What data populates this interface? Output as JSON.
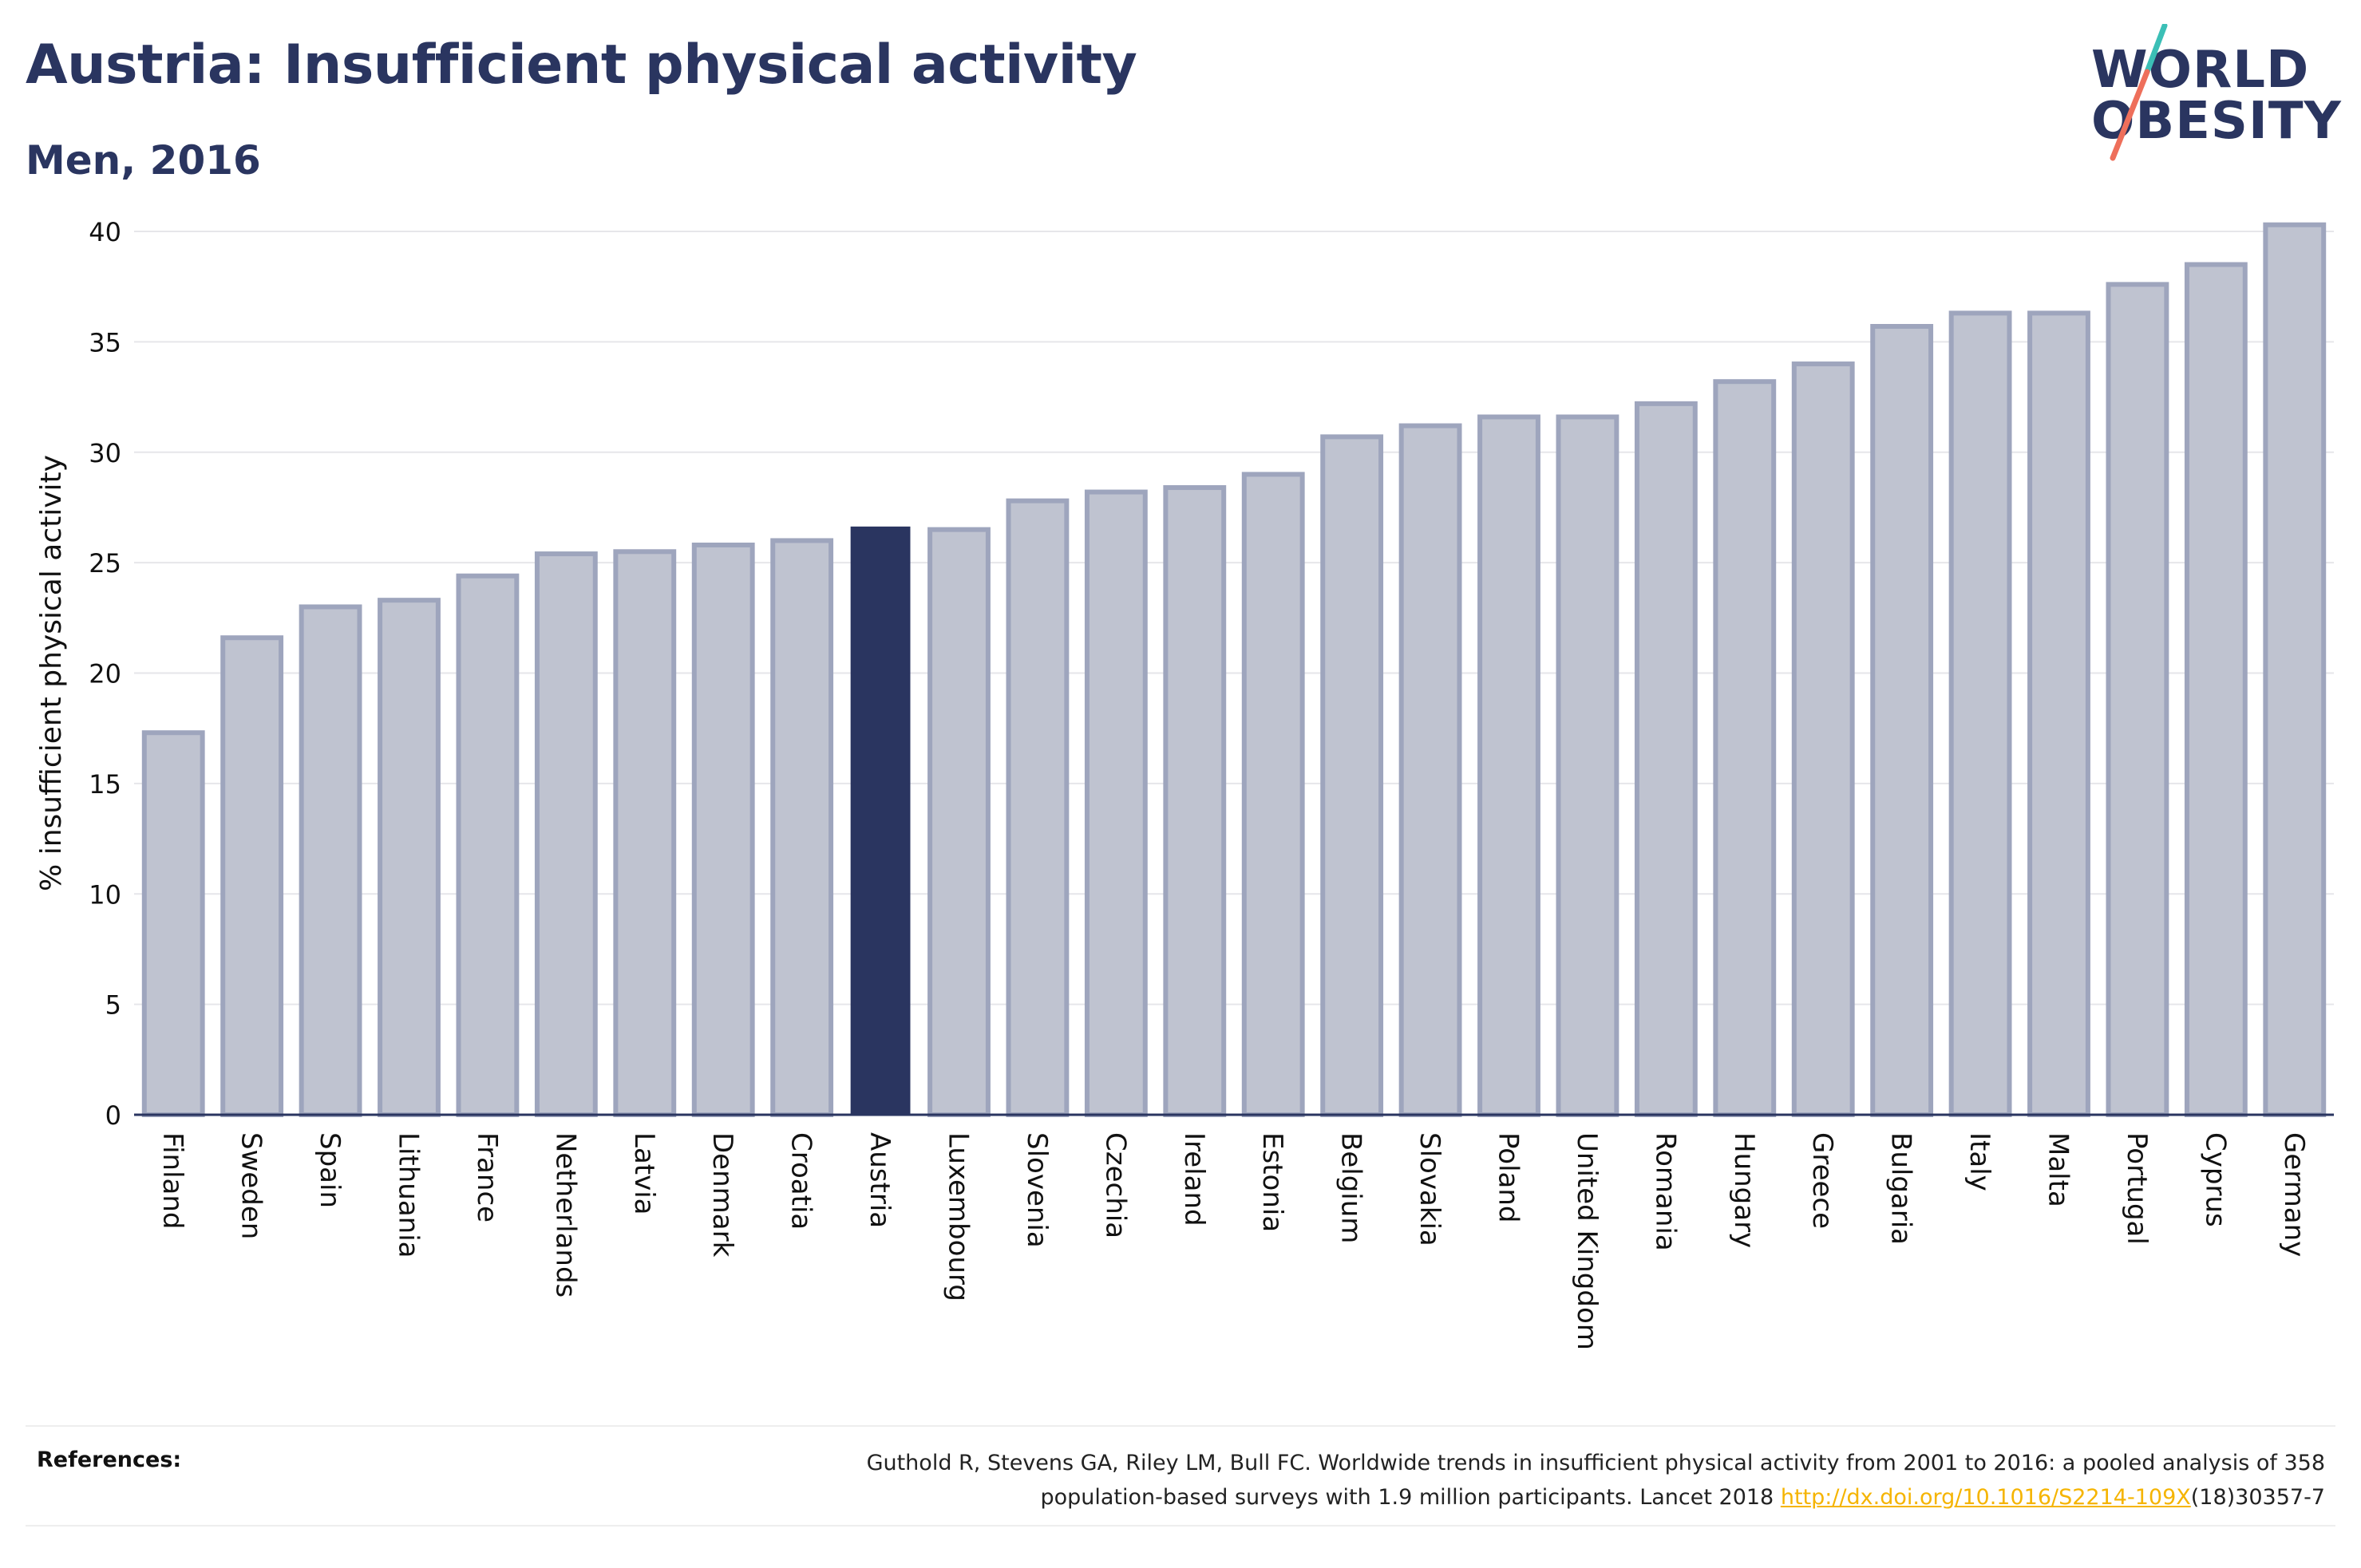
{
  "header": {
    "title": "Austria: Insufficient physical activity",
    "subtitle": "Men, 2016"
  },
  "logo": {
    "line1": "WORLD",
    "line2": "OBESITY",
    "colors": {
      "text": "#2a3560",
      "slash_top": "#3bbfb6",
      "slash_bottom": "#ee6f5b"
    }
  },
  "colors": {
    "bar_fill": "#bfc3d0",
    "bar_stroke": "#9ea5bd",
    "highlight_fill": "#2a3560",
    "grid": "#e6e6ea",
    "axis": "#2a3560"
  },
  "chart_data": {
    "type": "bar",
    "categories": [
      "Finland",
      "Sweden",
      "Spain",
      "Lithuania",
      "France",
      "Netherlands",
      "Latvia",
      "Denmark",
      "Croatia",
      "Austria",
      "Luxembourg",
      "Slovenia",
      "Czechia",
      "Ireland",
      "Estonia",
      "Belgium",
      "Slovakia",
      "Poland",
      "United Kingdom",
      "Romania",
      "Hungary",
      "Greece",
      "Bulgaria",
      "Italy",
      "Malta",
      "Portugal",
      "Cyprus",
      "Germany"
    ],
    "values": [
      17.3,
      21.6,
      23.0,
      23.3,
      24.4,
      25.4,
      25.5,
      25.8,
      26.0,
      26.6,
      26.5,
      27.8,
      28.2,
      28.4,
      29.0,
      30.7,
      31.2,
      31.6,
      31.6,
      32.2,
      33.2,
      34.0,
      35.7,
      36.3,
      36.3,
      37.6,
      38.5,
      40.3
    ],
    "highlight": "Austria",
    "ylabel": "% insufficient physical activity",
    "ylim": [
      0,
      40
    ],
    "yticks": [
      0,
      5,
      10,
      15,
      20,
      25,
      30,
      35,
      40
    ],
    "grid": true
  },
  "references": {
    "label": "References:",
    "line1": "Guthold R, Stevens GA, Riley LM, Bull FC. Worldwide trends in insufficient physical activity from 2001 to 2016: a pooled analysis of 358",
    "line2_pre": "population-based surveys with 1.9 million participants. Lancet 2018 ",
    "link": "http://dx.doi.org/10.1016/S2214-109X",
    "line2_post": "(18)30357-7"
  }
}
